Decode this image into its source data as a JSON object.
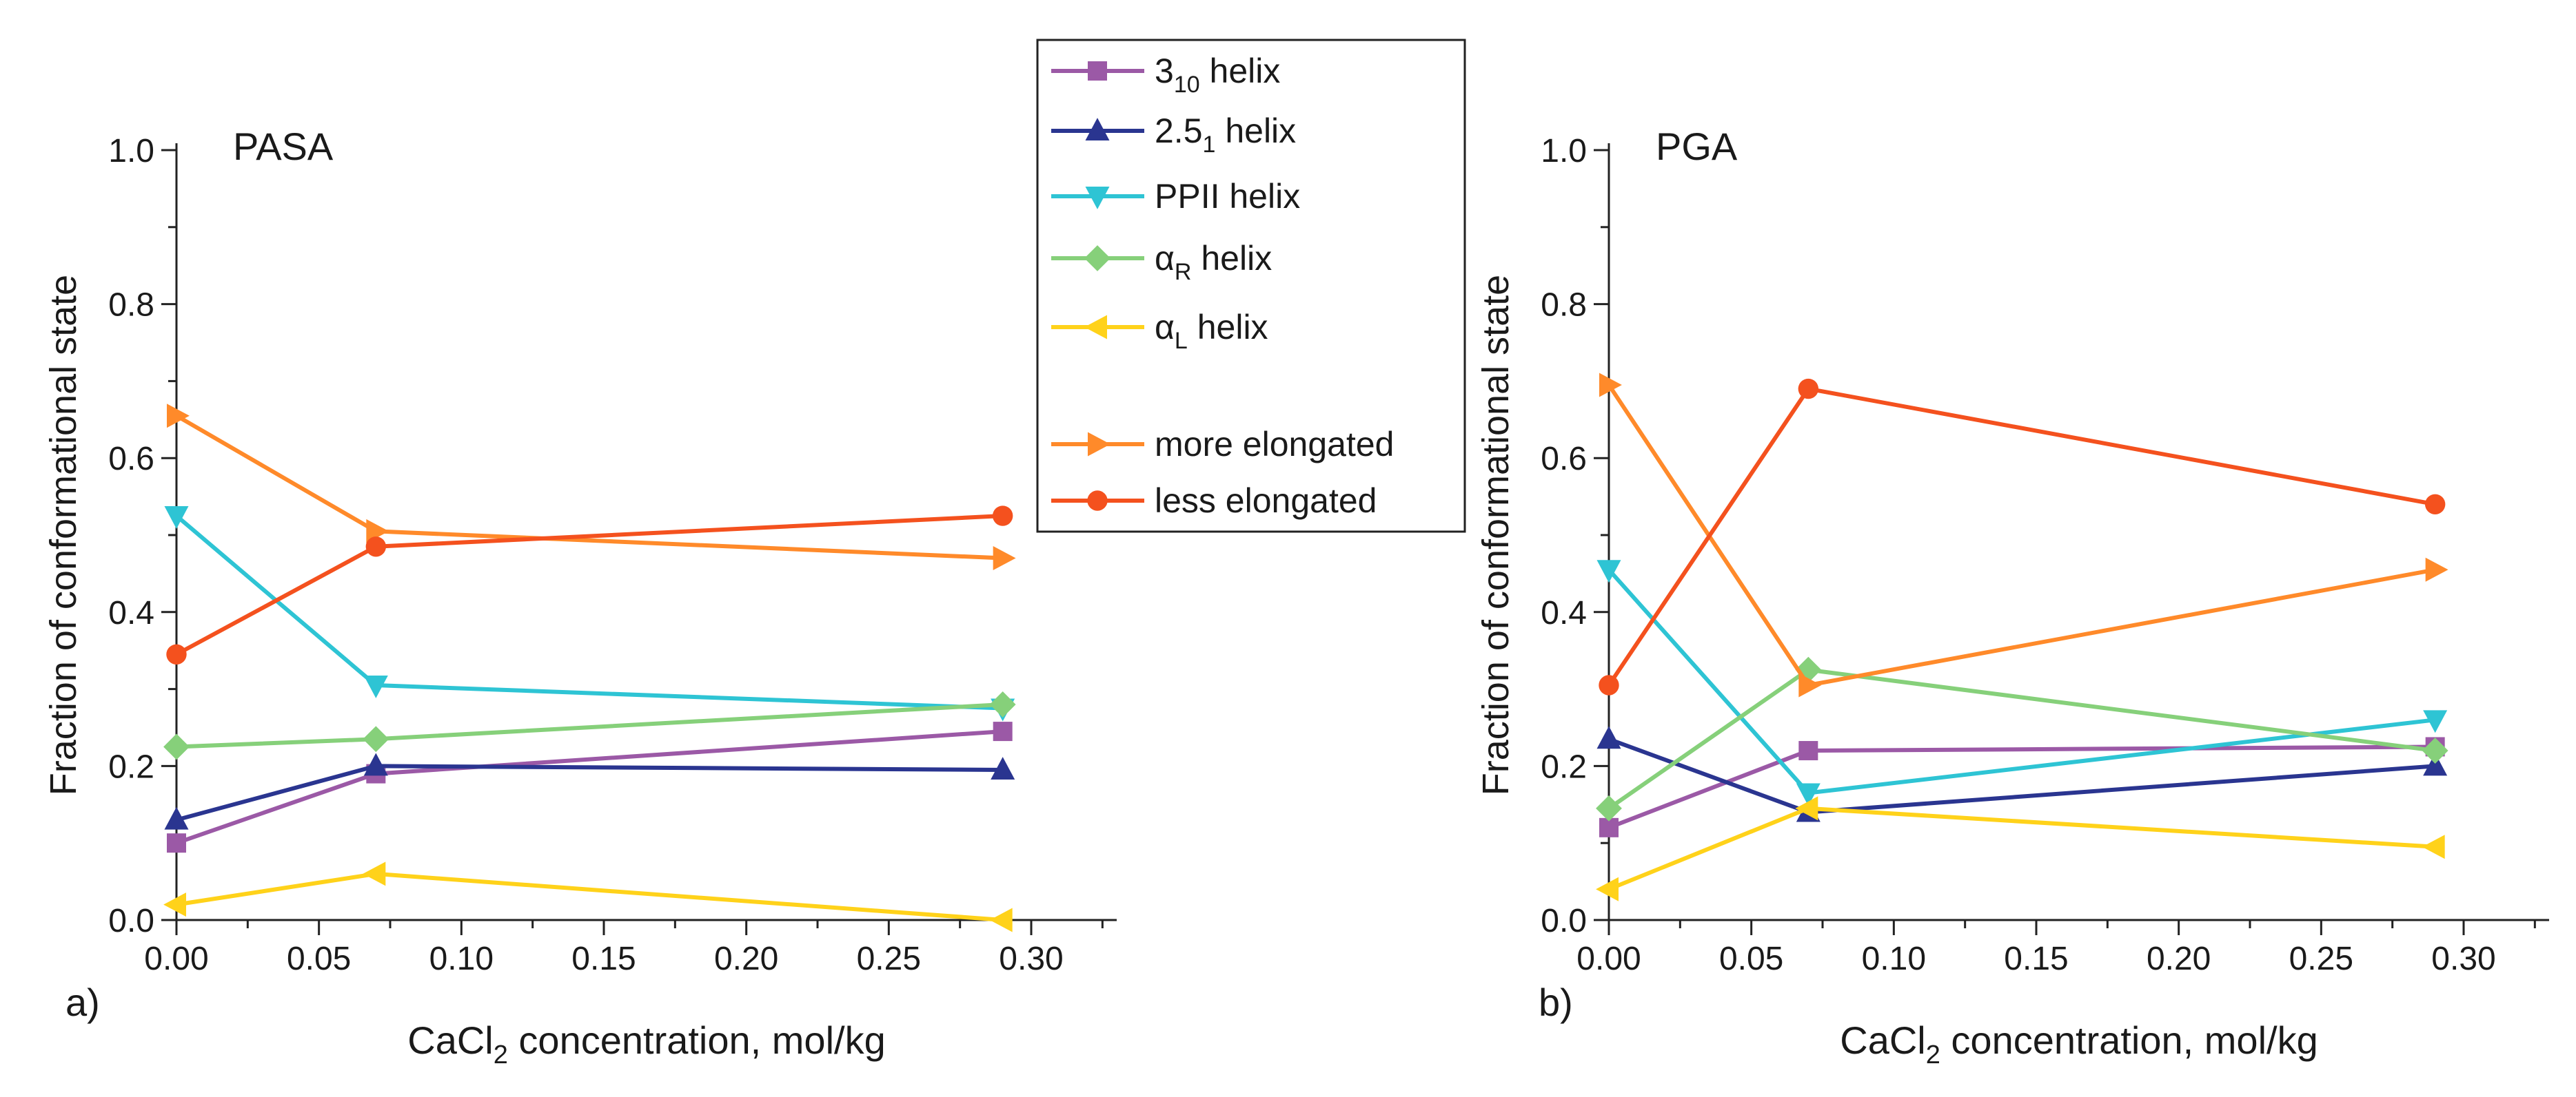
{
  "legend": {
    "items": [
      {
        "key": "h310",
        "label": "3",
        "sub": "10",
        "suffix": " helix",
        "color": "#9B59A6",
        "marker": "square"
      },
      {
        "key": "h251",
        "label": "2.5",
        "sub": "1",
        "suffix": " helix",
        "color": "#2A3590",
        "marker": "triangle-up"
      },
      {
        "key": "ppii",
        "label": "PPII helix",
        "sub": "",
        "suffix": "",
        "color": "#2EC4D4",
        "marker": "triangle-down"
      },
      {
        "key": "aR",
        "label": "α",
        "sub": "R",
        "suffix": " helix",
        "color": "#86D07A",
        "marker": "diamond"
      },
      {
        "key": "aL",
        "label": "α",
        "sub": "L",
        "suffix": " helix",
        "color": "#FFD21A",
        "marker": "triangle-left"
      },
      {
        "key": "more",
        "label": "more elongated",
        "sub": "",
        "suffix": "",
        "color": "#FF8A2A",
        "marker": "triangle-right"
      },
      {
        "key": "less",
        "label": "less elongated",
        "sub": "",
        "suffix": "",
        "color": "#F4511E",
        "marker": "circle"
      }
    ]
  },
  "chart_data": [
    {
      "type": "line",
      "panel_label": "a)",
      "title": "PASA",
      "xlabel_pre": "CaCl",
      "xlabel_sub": "2",
      "xlabel_post": " concentration, mol/kg",
      "ylabel": "Fraction of conformational state",
      "xlim": [
        0,
        0.33
      ],
      "ylim": [
        0,
        1.0
      ],
      "xticks": [
        "0.00",
        "0.05",
        "0.10",
        "0.15",
        "0.20",
        "0.25",
        "0.30"
      ],
      "xtick_values": [
        0,
        0.05,
        0.1,
        0.15,
        0.2,
        0.25,
        0.3
      ],
      "yticks": [
        "0.0",
        "0.2",
        "0.4",
        "0.6",
        "0.8",
        "1.0"
      ],
      "ytick_values": [
        0,
        0.2,
        0.4,
        0.6,
        0.8,
        1.0
      ],
      "x": [
        0.0,
        0.07,
        0.29
      ],
      "series": [
        {
          "key": "h310",
          "name": "3_10 helix",
          "values": [
            0.1,
            0.19,
            0.245
          ]
        },
        {
          "key": "h251",
          "name": "2.5_1 helix",
          "values": [
            0.13,
            0.2,
            0.195
          ]
        },
        {
          "key": "ppii",
          "name": "PPII helix",
          "values": [
            0.525,
            0.305,
            0.275
          ]
        },
        {
          "key": "aR",
          "name": "alpha_R helix",
          "values": [
            0.225,
            0.235,
            0.28
          ]
        },
        {
          "key": "aL",
          "name": "alpha_L helix",
          "values": [
            0.02,
            0.06,
            0.0
          ]
        },
        {
          "key": "more",
          "name": "more elongated",
          "values": [
            0.655,
            0.505,
            0.47
          ]
        },
        {
          "key": "less",
          "name": "less elongated",
          "values": [
            0.345,
            0.485,
            0.525
          ]
        }
      ]
    },
    {
      "type": "line",
      "panel_label": "b)",
      "title": "PGA",
      "xlabel_pre": "CaCl",
      "xlabel_sub": "2",
      "xlabel_post": " concentration, mol/kg",
      "ylabel": "Fraction of conformational state",
      "xlim": [
        0,
        0.33
      ],
      "ylim": [
        0,
        1.0
      ],
      "xticks": [
        "0.00",
        "0.05",
        "0.10",
        "0.15",
        "0.20",
        "0.25",
        "0.30"
      ],
      "xtick_values": [
        0,
        0.05,
        0.1,
        0.15,
        0.2,
        0.25,
        0.3
      ],
      "yticks": [
        "0.0",
        "0.2",
        "0.4",
        "0.6",
        "0.8",
        "1.0"
      ],
      "ytick_values": [
        0,
        0.2,
        0.4,
        0.6,
        0.8,
        1.0
      ],
      "x": [
        0.0,
        0.07,
        0.29
      ],
      "series": [
        {
          "key": "h310",
          "name": "3_10 helix",
          "values": [
            0.12,
            0.22,
            0.225
          ]
        },
        {
          "key": "h251",
          "name": "2.5_1 helix",
          "values": [
            0.235,
            0.14,
            0.2
          ]
        },
        {
          "key": "ppii",
          "name": "PPII helix",
          "values": [
            0.455,
            0.165,
            0.26
          ]
        },
        {
          "key": "aR",
          "name": "alpha_R helix",
          "values": [
            0.145,
            0.325,
            0.22
          ]
        },
        {
          "key": "aL",
          "name": "alpha_L helix",
          "values": [
            0.04,
            0.145,
            0.095
          ]
        },
        {
          "key": "more",
          "name": "more elongated",
          "values": [
            0.695,
            0.305,
            0.455
          ]
        },
        {
          "key": "less",
          "name": "less elongated",
          "values": [
            0.305,
            0.69,
            0.54
          ]
        }
      ]
    }
  ]
}
